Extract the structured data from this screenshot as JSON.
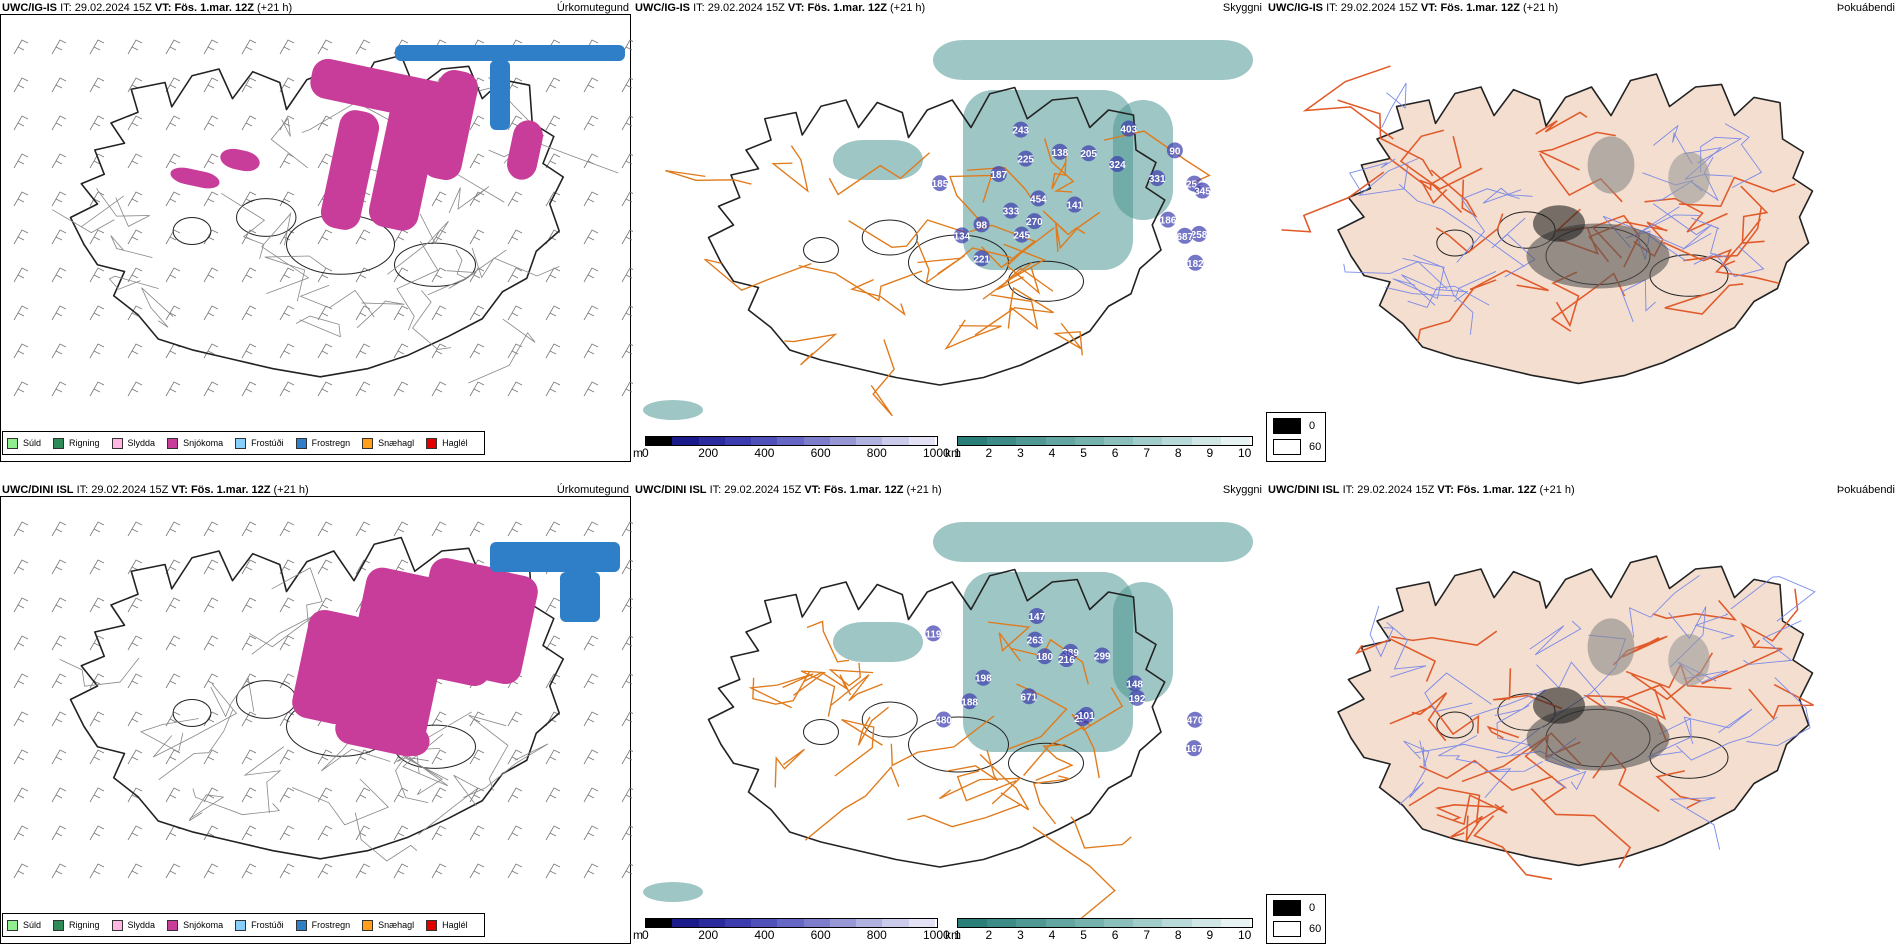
{
  "rows": [
    {
      "model": "UWC/IG-IS",
      "it_label": "IT:",
      "it_value": "29.02.2024 15Z",
      "vt_label": "VT:",
      "vt_value": "Fös. 1.mar. 12Z",
      "lead": "(+21 h)",
      "ceiling_values": [
        "225",
        "254",
        "324",
        "345",
        "454",
        "258",
        "270",
        "403",
        "687",
        "90",
        "187",
        "186",
        "331",
        "245",
        "134",
        "141",
        "333",
        "185",
        "243",
        "138",
        "182",
        "205",
        "221",
        "98"
      ]
    },
    {
      "model": "UWC/DINI ISL",
      "it_label": "IT:",
      "it_value": "29.02.2024 15Z",
      "vt_label": "VT:",
      "vt_value": "Fös. 1.mar. 12Z",
      "lead": "(+21 h)",
      "ceiling_values": [
        "147",
        "192",
        "299",
        "389",
        "198",
        "294",
        "470",
        "180",
        "671",
        "480",
        "148",
        "263",
        "188",
        "216",
        "167",
        "101",
        "119"
      ]
    }
  ],
  "panel_names": {
    "precip_type": "Úrkomutegund",
    "ceiling": "Skyggni",
    "fog": "Þokuábendi"
  },
  "precip_legend": [
    {
      "label": "Súld",
      "color": "#90ee90"
    },
    {
      "label": "Rigning",
      "color": "#2e8b57"
    },
    {
      "label": "Slydda",
      "color": "#ffb6e1"
    },
    {
      "label": "Snjókoma",
      "color": "#c83c9a"
    },
    {
      "label": "Frostúði",
      "color": "#87cefa"
    },
    {
      "label": "Frostregn",
      "color": "#2f7fc8"
    },
    {
      "label": "Snæhagl",
      "color": "#ff9f1a"
    },
    {
      "label": "Haglél",
      "color": "#e00000"
    }
  ],
  "ceiling_bar": {
    "unit": "m",
    "ticks": [
      "0",
      "200",
      "400",
      "600",
      "800",
      "1000"
    ],
    "colors": [
      "#000000",
      "#1a1a8a",
      "#2b2b9e",
      "#3c3cae",
      "#5050bb",
      "#6666c4",
      "#7d7dcc",
      "#9797d6",
      "#b1b1e0",
      "#cacaea",
      "#e2e2f4"
    ]
  },
  "visibility_bar": {
    "unit": "km",
    "ticks": [
      "1",
      "2",
      "3",
      "4",
      "5",
      "6",
      "7",
      "8",
      "9",
      "10"
    ],
    "colors": [
      "#2a7e78",
      "#3d8b86",
      "#4f9894",
      "#62a5a1",
      "#75b2ae",
      "#8abfbc",
      "#a0ccca",
      "#b7d9d7",
      "#cfe6e5",
      "#e7f3f2"
    ]
  },
  "fog_legend": [
    {
      "label": "0",
      "color": "#000000"
    },
    {
      "label": "60",
      "color": "#ffffff"
    }
  ]
}
